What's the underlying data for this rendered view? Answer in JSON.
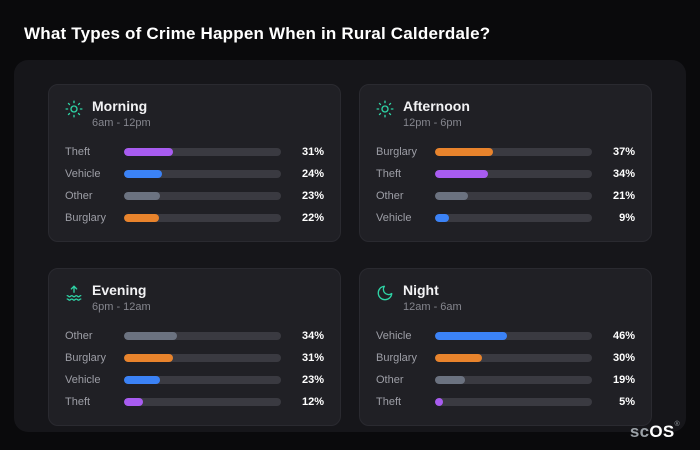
{
  "title": "What Types of Crime Happen When in Rural Calderdale?",
  "logo": {
    "prefix": "sc",
    "suffix": "OS",
    "registered": "®"
  },
  "theme": {
    "background": "#0a0a0c",
    "panel": "#16161a",
    "card": "#202025",
    "track": "#3a3a41",
    "icon_accent": "#2ed3a5",
    "theft_color": "#a85cf0",
    "vehicle_color": "#3b82f6",
    "other_color": "#6b7280",
    "burglary_color": "#e8832c"
  },
  "cards": [
    {
      "id": "morning",
      "icon": "sun-icon",
      "title": "Morning",
      "subtitle": "6am - 12pm",
      "rows": [
        {
          "label": "Theft",
          "value": 31,
          "pct": "31%",
          "color": "#a85cf0"
        },
        {
          "label": "Vehicle",
          "value": 24,
          "pct": "24%",
          "color": "#3b82f6"
        },
        {
          "label": "Other",
          "value": 23,
          "pct": "23%",
          "color": "#6b7280"
        },
        {
          "label": "Burglary",
          "value": 22,
          "pct": "22%",
          "color": "#e8832c"
        }
      ]
    },
    {
      "id": "afternoon",
      "icon": "sun-icon",
      "title": "Afternoon",
      "subtitle": "12pm - 6pm",
      "rows": [
        {
          "label": "Burglary",
          "value": 37,
          "pct": "37%",
          "color": "#e8832c"
        },
        {
          "label": "Theft",
          "value": 34,
          "pct": "34%",
          "color": "#a85cf0"
        },
        {
          "label": "Other",
          "value": 21,
          "pct": "21%",
          "color": "#6b7280"
        },
        {
          "label": "Vehicle",
          "value": 9,
          "pct": "9%",
          "color": "#3b82f6"
        }
      ]
    },
    {
      "id": "evening",
      "icon": "sunset-icon",
      "title": "Evening",
      "subtitle": "6pm - 12am",
      "rows": [
        {
          "label": "Other",
          "value": 34,
          "pct": "34%",
          "color": "#6b7280"
        },
        {
          "label": "Burglary",
          "value": 31,
          "pct": "31%",
          "color": "#e8832c"
        },
        {
          "label": "Vehicle",
          "value": 23,
          "pct": "23%",
          "color": "#3b82f6"
        },
        {
          "label": "Theft",
          "value": 12,
          "pct": "12%",
          "color": "#a85cf0"
        }
      ]
    },
    {
      "id": "night",
      "icon": "moon-icon",
      "title": "Night",
      "subtitle": "12am - 6am",
      "rows": [
        {
          "label": "Vehicle",
          "value": 46,
          "pct": "46%",
          "color": "#3b82f6"
        },
        {
          "label": "Burglary",
          "value": 30,
          "pct": "30%",
          "color": "#e8832c"
        },
        {
          "label": "Other",
          "value": 19,
          "pct": "19%",
          "color": "#6b7280"
        },
        {
          "label": "Theft",
          "value": 5,
          "pct": "5%",
          "color": "#a85cf0"
        }
      ]
    }
  ],
  "chart_data": [
    {
      "type": "bar",
      "orientation": "horizontal",
      "title": "Morning",
      "subtitle": "6am - 12pm",
      "categories": [
        "Theft",
        "Vehicle",
        "Other",
        "Burglary"
      ],
      "values": [
        31,
        24,
        23,
        22
      ],
      "unit": "%",
      "xlim": [
        0,
        100
      ],
      "grid": false,
      "legend": false
    },
    {
      "type": "bar",
      "orientation": "horizontal",
      "title": "Afternoon",
      "subtitle": "12pm - 6pm",
      "categories": [
        "Burglary",
        "Theft",
        "Other",
        "Vehicle"
      ],
      "values": [
        37,
        34,
        21,
        9
      ],
      "unit": "%",
      "xlim": [
        0,
        100
      ],
      "grid": false,
      "legend": false
    },
    {
      "type": "bar",
      "orientation": "horizontal",
      "title": "Evening",
      "subtitle": "6pm - 12am",
      "categories": [
        "Other",
        "Burglary",
        "Vehicle",
        "Theft"
      ],
      "values": [
        34,
        31,
        23,
        12
      ],
      "unit": "%",
      "xlim": [
        0,
        100
      ],
      "grid": false,
      "legend": false
    },
    {
      "type": "bar",
      "orientation": "horizontal",
      "title": "Night",
      "subtitle": "12am - 6am",
      "categories": [
        "Vehicle",
        "Burglary",
        "Other",
        "Theft"
      ],
      "values": [
        46,
        30,
        19,
        5
      ],
      "unit": "%",
      "xlim": [
        0,
        100
      ],
      "grid": false,
      "legend": false
    }
  ]
}
